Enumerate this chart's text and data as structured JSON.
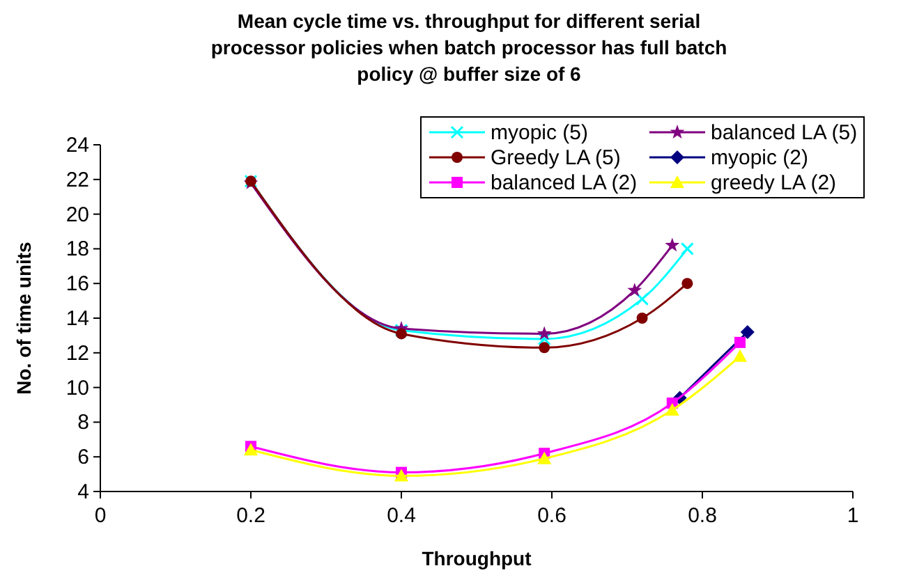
{
  "chart_data": {
    "type": "line",
    "title": "Mean cycle time vs. throughput for different serial processor policies when batch processor has full batch policy @ buffer size of 6",
    "xlabel": "Throughput",
    "ylabel": "No. of time units",
    "xlim": [
      0,
      1
    ],
    "xticks": [
      0,
      0.2,
      0.4,
      0.6,
      0.8,
      1
    ],
    "ylim": [
      4,
      24
    ],
    "yticks": [
      4,
      6,
      8,
      10,
      12,
      14,
      16,
      18,
      20,
      22,
      24
    ],
    "grid": false,
    "legend": "top right",
    "series": [
      {
        "name": "myopic (5)",
        "color": "#00ffff",
        "marker": "cross",
        "x": [
          0.2,
          0.4,
          0.59,
          0.72,
          0.78
        ],
        "values": [
          21.9,
          13.3,
          12.8,
          15.1,
          18.0
        ]
      },
      {
        "name": "balanced LA (5)",
        "color": "#800080",
        "marker": "star",
        "x": [
          0.2,
          0.4,
          0.59,
          0.71,
          0.76
        ],
        "values": [
          21.8,
          13.4,
          13.1,
          15.6,
          18.2
        ]
      },
      {
        "name": "Greedy LA (5)",
        "color": "#800000",
        "marker": "circle",
        "x": [
          0.2,
          0.4,
          0.59,
          0.72,
          0.78
        ],
        "values": [
          21.9,
          13.1,
          12.3,
          14.0,
          16.0
        ]
      },
      {
        "name": "myopic (2)",
        "color": "#000080",
        "marker": "diamond",
        "x": [
          0.77,
          0.86
        ],
        "values": [
          9.4,
          13.2
        ]
      },
      {
        "name": "balanced LA (2)",
        "color": "#ff00ff",
        "marker": "square",
        "x": [
          0.2,
          0.4,
          0.59,
          0.76,
          0.85
        ],
        "values": [
          6.6,
          5.1,
          6.2,
          9.1,
          12.6
        ]
      },
      {
        "name": "greedy LA (2)",
        "color": "#ffff00",
        "marker": "triangle",
        "x": [
          0.2,
          0.4,
          0.59,
          0.76,
          0.85
        ],
        "values": [
          6.4,
          4.9,
          5.9,
          8.7,
          11.8
        ]
      }
    ]
  }
}
